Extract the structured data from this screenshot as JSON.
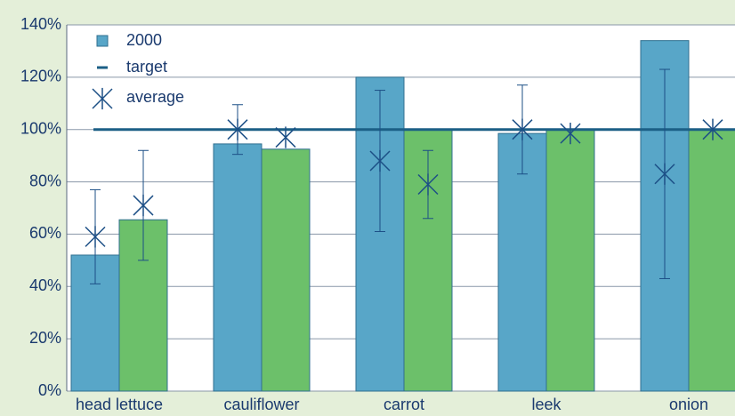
{
  "chart_data": {
    "type": "bar",
    "categories": [
      "head lettuce",
      "cauliflower",
      "carrot",
      "leek",
      "onion"
    ],
    "series": [
      {
        "name": "2000",
        "color": "#58a6c8",
        "values": [
          52,
          94.5,
          120,
          98.5,
          134
        ],
        "averages": [
          59,
          100,
          88,
          100,
          83
        ],
        "errors": [
          18,
          9.5,
          27,
          17,
          40
        ]
      },
      {
        "color": "#6cc06a",
        "values": [
          65.5,
          92.5,
          100,
          100,
          100
        ],
        "averages": [
          71,
          97,
          79,
          98.5,
          100
        ],
        "errors": [
          21,
          null,
          13,
          null,
          null
        ]
      }
    ],
    "target": 100,
    "legend": [
      "2000",
      "target",
      "average"
    ],
    "ylim": [
      0,
      140
    ],
    "yticks": [
      {
        "value": 0,
        "label": "0%"
      },
      {
        "value": 20,
        "label": "20%"
      },
      {
        "value": 40,
        "label": "40%"
      },
      {
        "value": 60,
        "label": "60%"
      },
      {
        "value": 80,
        "label": "80%"
      },
      {
        "value": 100,
        "label": "100%"
      },
      {
        "value": 120,
        "label": "120%"
      },
      {
        "value": 140,
        "label": "140%"
      }
    ],
    "grid": true
  }
}
